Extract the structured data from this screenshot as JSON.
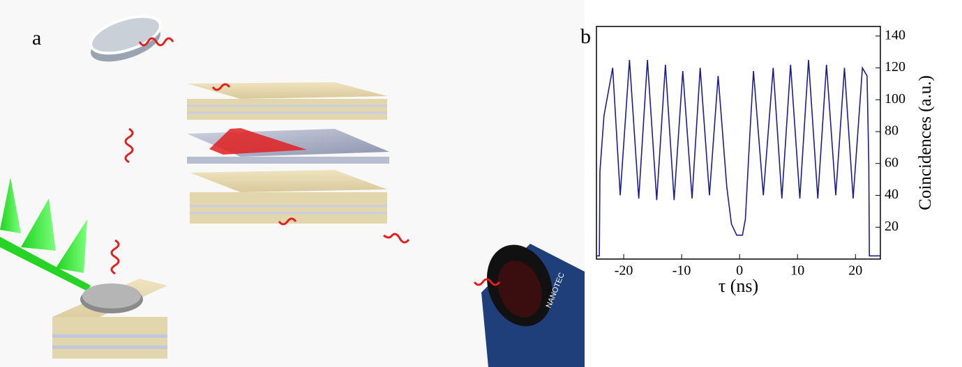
{
  "figure": {
    "panel_a_label": "a",
    "camera_logo": "NANOTEC"
  },
  "chart_data": {
    "type": "line",
    "label": "b",
    "x_label": "τ (ns)",
    "y_label": "Coincidences (a.u.)",
    "xlim": [
      -24.7,
      24.3
    ],
    "ylim": [
      0,
      146
    ],
    "xticks": [
      -20,
      -10,
      0,
      10,
      20
    ],
    "yticks": [
      20,
      40,
      60,
      80,
      100,
      120,
      140
    ],
    "y_axis_side": "right",
    "series": [
      {
        "color": "#1c1c8f",
        "x": [
          -24.7,
          -24.2,
          -24.1,
          -23.4,
          -21.9,
          -20.6,
          -19.0,
          -17.4,
          -15.9,
          -14.3,
          -12.8,
          -11.3,
          -9.8,
          -8.2,
          -6.8,
          -5.2,
          -3.7,
          -2.2,
          -1.4,
          -0.5,
          0.5,
          1.0,
          1.8,
          2.4,
          4.1,
          5.8,
          7.3,
          8.8,
          10.4,
          11.9,
          13.5,
          15.0,
          16.6,
          18.1,
          19.6,
          21.2,
          22.0,
          22.3,
          22.4,
          24.3
        ],
        "values": [
          2,
          2,
          55,
          90,
          120,
          40,
          125,
          38,
          125,
          37,
          122,
          37,
          118,
          38,
          120,
          40,
          115,
          45,
          22,
          15,
          15,
          25,
          80,
          118,
          40,
          120,
          38,
          122,
          38,
          125,
          38,
          122,
          40,
          120,
          38,
          120,
          115,
          60,
          2,
          2
        ]
      }
    ]
  }
}
